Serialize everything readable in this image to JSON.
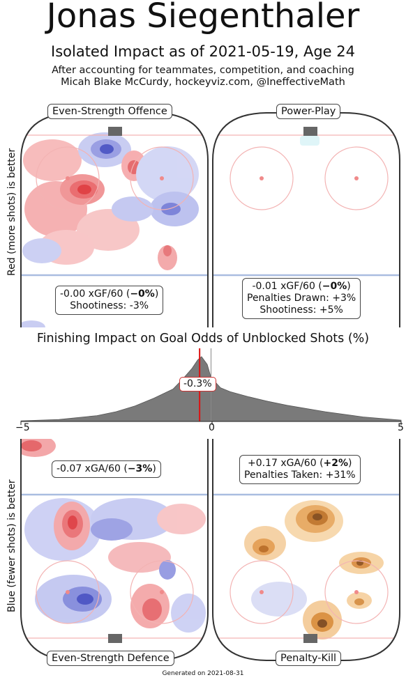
{
  "header": {
    "title": "Jonas Siegenthaler",
    "subtitle": "Isolated Impact as of 2021-05-19, Age 24",
    "note1": "After accounting for teammates, competition, and coaching",
    "note2": "Micah Blake McCurdy, hockeyviz.com, @IneffectiveMath"
  },
  "axis_labels": {
    "top": "Red (more shots) is better",
    "bottom": "Blue (fewer shots) is better"
  },
  "panels": {
    "ev_offence": {
      "label": "Even-Strength Offence",
      "line1_pre": "-0.00 xGF/60 (",
      "line1_bold": "−0%",
      "line1_post": ")",
      "line2": "Shootiness: -3%"
    },
    "power_play": {
      "label": "Power-Play",
      "line1_pre": "-0.01 xGF/60 (",
      "line1_bold": "−0%",
      "line1_post": ")",
      "line2": "Penalties Drawn: +3%",
      "line3": "Shootiness: +5%"
    },
    "ev_defence": {
      "label": "Even-Strength Defence",
      "line1_pre": "-0.07 xGA/60 (",
      "line1_bold": "−3%",
      "line1_post": ")"
    },
    "penalty_kill": {
      "label": "Penalty-Kill",
      "line1_pre": "+0.17 xGA/60 (",
      "line1_bold": "+2%",
      "line1_post": ")",
      "line2": "Penalties Taken: +31%"
    }
  },
  "chart_data": {
    "type": "area",
    "title": "Finishing Impact on Goal Odds of Unblocked Shots (%)",
    "xlim": [
      -5,
      5
    ],
    "xticks": [
      "−5",
      "0",
      "5"
    ],
    "x": [
      -5,
      -4,
      -3,
      -2.5,
      -2,
      -1.5,
      -1,
      -0.75,
      -0.5,
      -0.35,
      -0.25,
      -0.1,
      0,
      0.25,
      0.5,
      1,
      1.5,
      2,
      3,
      4,
      5
    ],
    "density": [
      0.01,
      0.03,
      0.09,
      0.15,
      0.24,
      0.36,
      0.5,
      0.65,
      0.82,
      0.95,
      1.0,
      0.88,
      0.68,
      0.52,
      0.46,
      0.38,
      0.31,
      0.25,
      0.15,
      0.07,
      0.02
    ],
    "marker_value": -0.3,
    "marker_label": "-0.3%",
    "colors": {
      "fill": "#7a7a7a",
      "marker": "#dd1111"
    }
  },
  "footer": {
    "generated": "Generated on 2021-08-31"
  },
  "colors": {
    "red": "#e8585a",
    "blue": "#4a57c9",
    "orange": "#c8833a",
    "rink_line_red": "#f0a0a0",
    "rink_line_blue": "#aabbdd"
  }
}
